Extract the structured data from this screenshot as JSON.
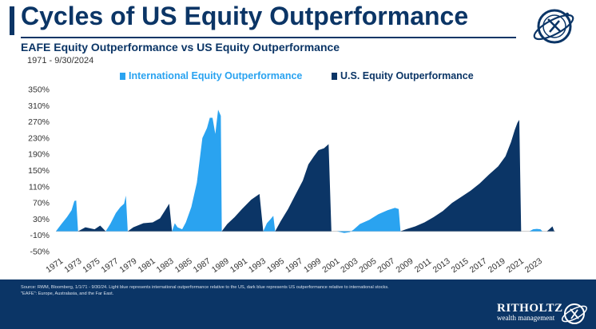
{
  "header": {
    "title": "Cycles of US Equity Outperformance",
    "subtitle": "EAFE Equity Outperformance vs US Equity Outperformance",
    "date_range": "1971 - 9/30/2024"
  },
  "legend": {
    "international_label": "International Equity Outperformance",
    "us_label": "U.S. Equity Outperformance"
  },
  "colors": {
    "international": "#2aa3f0",
    "us": "#0b3566",
    "brand_navy": "#0b3566"
  },
  "footer": {
    "source_line1": "Source: RWM, Bloomberg, 1/1/71 - 9/30/24. Light blue represents international outperformance relative to the US, dark blue represents US outperformance relative to international stocks.",
    "source_line2": "\"EAFE\": Europe, Australasia, and the Far East.",
    "brand_name": "RITHOLTZ",
    "brand_tagline": "wealth management"
  },
  "chart_data": {
    "type": "area",
    "ylim": [
      -50,
      350
    ],
    "y_ticks": [
      -50,
      -10,
      30,
      70,
      110,
      150,
      190,
      230,
      270,
      310,
      350
    ],
    "y_tick_labels": [
      "-50%",
      "-10%",
      "30%",
      "70%",
      "110%",
      "150%",
      "190%",
      "230%",
      "270%",
      "310%",
      "350%"
    ],
    "xlim": [
      1971,
      2025.2
    ],
    "x_ticks": [
      1971,
      1973,
      1975,
      1977,
      1979,
      1981,
      1983,
      1985,
      1987,
      1989,
      1991,
      1993,
      1995,
      1997,
      1999,
      2001,
      2003,
      2005,
      2007,
      2009,
      2011,
      2013,
      2015,
      2017,
      2019,
      2021,
      2023
    ],
    "series": [
      {
        "name": "International Equity Outperformance",
        "cycles": [
          {
            "points": [
              [
                1971.0,
                0
              ],
              [
                1971.6,
                18
              ],
              [
                1972.2,
                35
              ],
              [
                1972.7,
                52
              ],
              [
                1973.0,
                75
              ],
              [
                1973.2,
                76
              ],
              [
                1973.4,
                0
              ]
            ]
          },
          {
            "points": [
              [
                1976.4,
                0
              ],
              [
                1976.9,
                18
              ],
              [
                1977.5,
                45
              ],
              [
                1978.0,
                60
              ],
              [
                1978.4,
                68
              ],
              [
                1978.6,
                88
              ],
              [
                1978.8,
                0
              ]
            ]
          },
          {
            "points": [
              [
                1983.6,
                0
              ],
              [
                1983.9,
                20
              ],
              [
                1984.2,
                10
              ],
              [
                1984.7,
                5
              ],
              [
                1985.1,
                22
              ],
              [
                1985.7,
                60
              ],
              [
                1986.3,
                120
              ],
              [
                1986.9,
                230
              ],
              [
                1987.4,
                255
              ],
              [
                1987.7,
                280
              ],
              [
                1988.0,
                280
              ],
              [
                1988.3,
                240
              ],
              [
                1988.6,
                300
              ],
              [
                1988.9,
                285
              ],
              [
                1989.0,
                0
              ]
            ]
          },
          {
            "points": [
              [
                1993.5,
                0
              ],
              [
                1993.9,
                20
              ],
              [
                1994.3,
                30
              ],
              [
                1994.6,
                38
              ],
              [
                1994.8,
                0
              ]
            ]
          },
          {
            "points": [
              [
                2001.5,
                0
              ],
              [
                2002.3,
                -4
              ],
              [
                2002.9,
                -2
              ],
              [
                2003.3,
                4
              ],
              [
                2004.0,
                18
              ],
              [
                2005.0,
                28
              ],
              [
                2006.0,
                42
              ],
              [
                2007.0,
                52
              ],
              [
                2007.8,
                58
              ],
              [
                2008.2,
                55
              ],
              [
                2008.4,
                0
              ]
            ]
          },
          {
            "points": [
              [
                2022.4,
                0
              ],
              [
                2022.8,
                5
              ],
              [
                2023.2,
                6
              ],
              [
                2023.6,
                5
              ],
              [
                2023.8,
                0
              ]
            ]
          }
        ]
      },
      {
        "name": "U.S. Equity Outperformance",
        "cycles": [
          {
            "points": [
              [
                1973.4,
                0
              ],
              [
                1974.2,
                10
              ],
              [
                1975.2,
                5
              ],
              [
                1975.8,
                14
              ],
              [
                1976.4,
                0
              ]
            ]
          },
          {
            "points": [
              [
                1978.8,
                0
              ],
              [
                1979.4,
                10
              ],
              [
                1980.5,
                20
              ],
              [
                1981.5,
                22
              ],
              [
                1982.3,
                32
              ],
              [
                1982.8,
                50
              ],
              [
                1983.3,
                68
              ],
              [
                1983.6,
                0
              ]
            ]
          },
          {
            "points": [
              [
                1989.0,
                0
              ],
              [
                1989.6,
                18
              ],
              [
                1990.4,
                35
              ],
              [
                1991.2,
                55
              ],
              [
                1992.2,
                78
              ],
              [
                1993.1,
                92
              ],
              [
                1993.5,
                0
              ]
            ]
          },
          {
            "points": [
              [
                1994.8,
                0
              ],
              [
                1995.4,
                25
              ],
              [
                1996.2,
                55
              ],
              [
                1997.0,
                90
              ],
              [
                1997.8,
                125
              ],
              [
                1998.4,
                165
              ],
              [
                1999.0,
                185
              ],
              [
                1999.5,
                200
              ],
              [
                2000.1,
                205
              ],
              [
                2000.6,
                215
              ],
              [
                2000.9,
                0
              ]
            ]
          },
          {
            "points": [
              [
                2008.4,
                0
              ],
              [
                2009.0,
                5
              ],
              [
                2010.0,
                12
              ],
              [
                2011.0,
                22
              ],
              [
                2012.0,
                35
              ],
              [
                2013.0,
                50
              ],
              [
                2014.0,
                70
              ],
              [
                2015.0,
                85
              ],
              [
                2016.0,
                100
              ],
              [
                2017.0,
                118
              ],
              [
                2018.0,
                140
              ],
              [
                2019.0,
                160
              ],
              [
                2019.8,
                185
              ],
              [
                2020.4,
                220
              ],
              [
                2020.8,
                250
              ],
              [
                2021.1,
                268
              ],
              [
                2021.3,
                275
              ],
              [
                2021.5,
                0
              ]
            ]
          },
          {
            "points": [
              [
                2024.3,
                0
              ],
              [
                2024.6,
                6
              ],
              [
                2024.9,
                12
              ],
              [
                2025.1,
                0
              ]
            ]
          }
        ]
      }
    ]
  }
}
